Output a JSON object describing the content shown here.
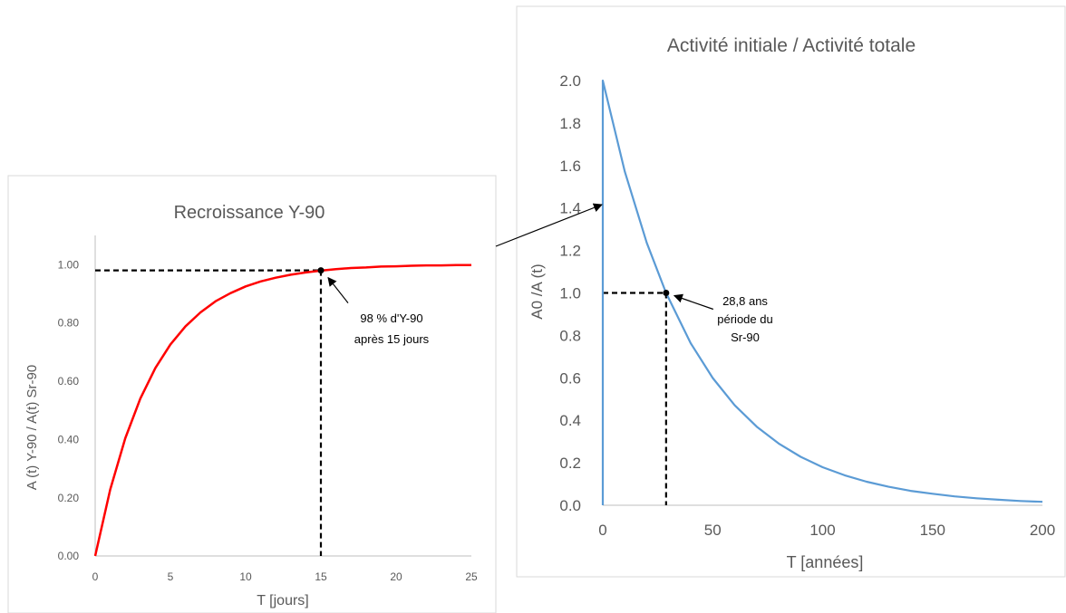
{
  "chart_data": [
    {
      "type": "line",
      "title": "Recroissance Y-90",
      "xlabel": "T [jours]",
      "ylabel": "A (t) Y-90 / A(t) Sr-90",
      "xlim": [
        0,
        25
      ],
      "ylim": [
        0,
        1.1
      ],
      "x_ticks": [
        "0",
        "5",
        "10",
        "15",
        "20",
        "25"
      ],
      "y_ticks": [
        "0.00",
        "0.20",
        "0.40",
        "0.60",
        "0.80",
        "1.00"
      ],
      "series_color": "#ff0000",
      "series": [
        {
          "x": [
            0,
            1,
            2,
            3,
            4,
            5,
            6,
            7,
            8,
            9,
            10,
            11,
            12,
            13,
            14,
            15,
            16,
            17,
            18,
            19,
            20,
            21,
            22,
            23,
            24,
            25
          ],
          "values": [
            0.0,
            0.228,
            0.404,
            0.54,
            0.645,
            0.726,
            0.788,
            0.836,
            0.874,
            0.902,
            0.925,
            0.942,
            0.955,
            0.965,
            0.973,
            0.979,
            0.984,
            0.988,
            0.99,
            0.993,
            0.994,
            0.996,
            0.997,
            0.997,
            0.998,
            0.998
          ]
        }
      ],
      "marker": {
        "x": 15,
        "y": 0.98
      },
      "annotation": [
        "98 % d'Y-90",
        "après 15 jours"
      ],
      "grid": false,
      "legend": "none"
    },
    {
      "type": "line",
      "title": "Activité initiale / Activité totale",
      "xlabel": "T [années]",
      "ylabel": "A0 /A (t)",
      "xlim": [
        0,
        200
      ],
      "ylim": [
        0,
        2.0
      ],
      "x_ticks": [
        "0",
        "50",
        "100",
        "150",
        "200"
      ],
      "y_ticks": [
        "0.0",
        "0.2",
        "0.4",
        "0.6",
        "0.8",
        "1.0",
        "1.2",
        "1.4",
        "1.6",
        "1.8",
        "2.0"
      ],
      "series_color": "#5b9bd5",
      "series": [
        {
          "x": [
            0,
            10,
            20,
            28.8,
            40,
            50,
            60,
            70,
            80,
            90,
            100,
            110,
            120,
            130,
            140,
            150,
            160,
            170,
            180,
            190,
            200
          ],
          "values": [
            2.0,
            1.571,
            1.236,
            1.0,
            0.763,
            0.599,
            0.471,
            0.37,
            0.291,
            0.228,
            0.179,
            0.141,
            0.111,
            0.087,
            0.068,
            0.054,
            0.042,
            0.033,
            0.026,
            0.02,
            0.016
          ]
        }
      ],
      "marker": {
        "x": 28.8,
        "y": 1.0
      },
      "annotation": [
        "28,8 ans",
        "période du",
        "Sr-90"
      ],
      "grid": false,
      "legend": "none"
    }
  ]
}
